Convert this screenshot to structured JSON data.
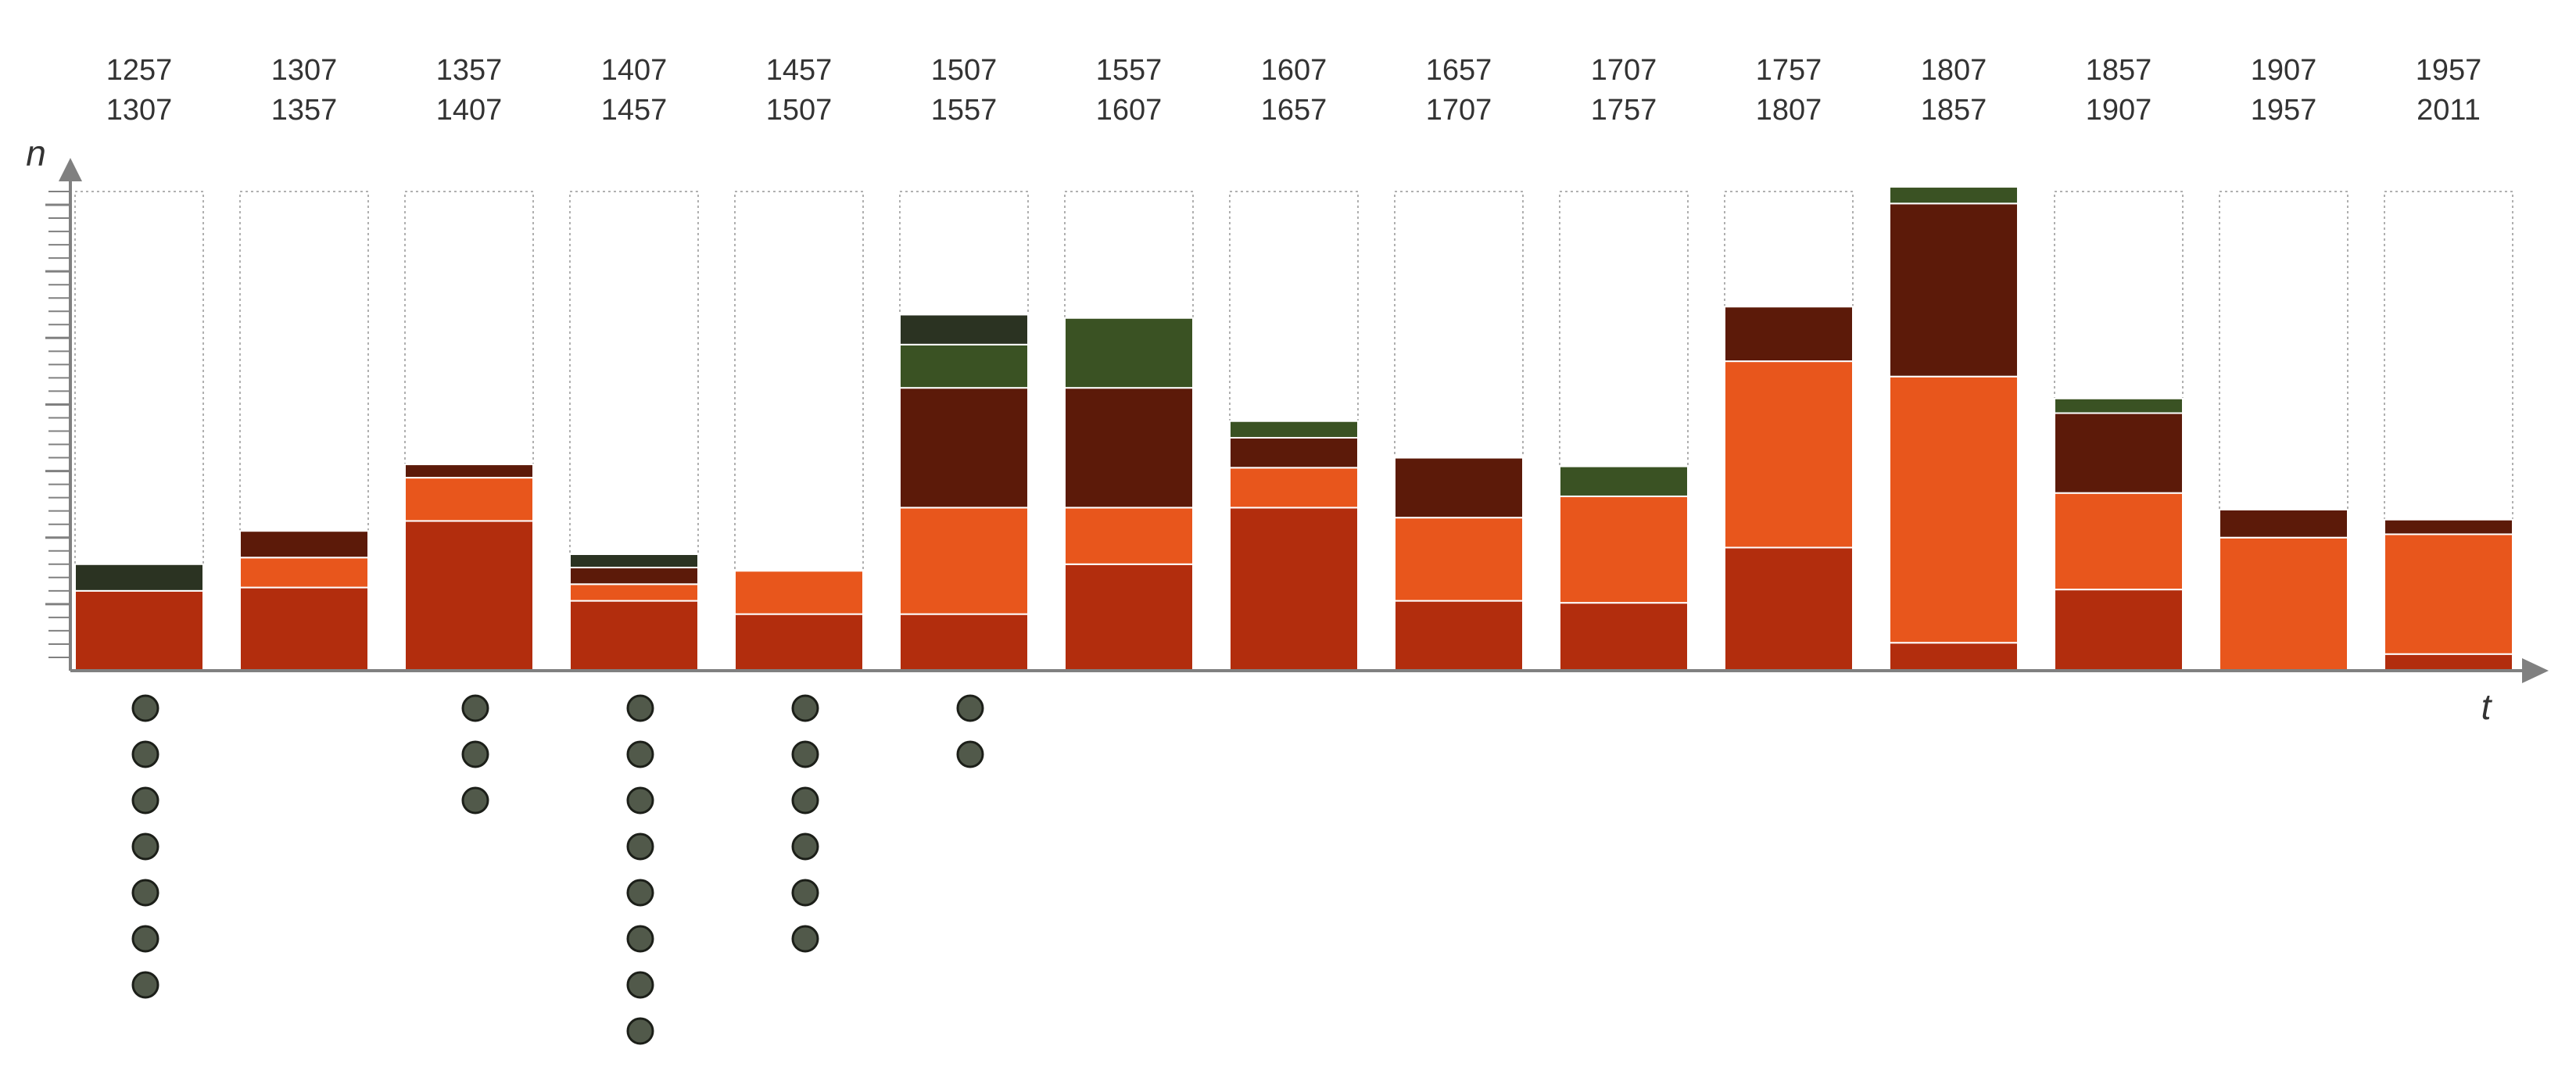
{
  "chart_data": {
    "type": "bar",
    "stacked": true,
    "xlabel": "t",
    "ylabel": "n",
    "ylim": [
      0,
      7.2
    ],
    "grid": false,
    "legend": "none",
    "colors": {
      "s1": "#b22d0d",
      "s2": "#e8561c",
      "s3": "#5c1a09",
      "s4": "#3a5223",
      "s5": "#2b3322",
      "frame": "#b0b0b0",
      "axis": "#808080",
      "dot": "#51594a",
      "dot_outline": "#1c1f19",
      "text": "#333333"
    },
    "categories": [
      {
        "start": "1257",
        "end": "1307"
      },
      {
        "start": "1307",
        "end": "1357"
      },
      {
        "start": "1357",
        "end": "1407"
      },
      {
        "start": "1407",
        "end": "1457"
      },
      {
        "start": "1457",
        "end": "1507"
      },
      {
        "start": "1507",
        "end": "1557"
      },
      {
        "start": "1557",
        "end": "1607"
      },
      {
        "start": "1607",
        "end": "1657"
      },
      {
        "start": "1657",
        "end": "1707"
      },
      {
        "start": "1707",
        "end": "1757"
      },
      {
        "start": "1757",
        "end": "1807"
      },
      {
        "start": "1807",
        "end": "1857"
      },
      {
        "start": "1857",
        "end": "1907"
      },
      {
        "start": "1907",
        "end": "1957"
      },
      {
        "start": "1957",
        "end": "2011"
      }
    ],
    "series": [
      {
        "key": "s1",
        "values": [
          1.2,
          1.25,
          2.25,
          1.05,
          0.85,
          0.85,
          1.6,
          2.45,
          1.05,
          1.02,
          1.85,
          0.42,
          1.22,
          0.0,
          0.25
        ]
      },
      {
        "key": "s2",
        "values": [
          0.0,
          0.45,
          0.65,
          0.25,
          0.65,
          1.6,
          0.85,
          0.6,
          1.25,
          1.6,
          2.8,
          4.0,
          1.45,
          2.0,
          1.8
        ]
      },
      {
        "key": "s3",
        "values": [
          0.0,
          0.4,
          0.2,
          0.25,
          0.0,
          1.8,
          1.8,
          0.45,
          0.9,
          0.0,
          0.82,
          2.6,
          1.2,
          0.42,
          0.22
        ]
      },
      {
        "key": "s4",
        "values": [
          0.0,
          0.0,
          0.0,
          0.0,
          0.0,
          0.65,
          1.05,
          0.25,
          0.0,
          0.45,
          0.0,
          0.25,
          0.22,
          0.0,
          0.0
        ]
      },
      {
        "key": "s5",
        "values": [
          0.4,
          0.0,
          0.0,
          0.2,
          0.0,
          0.45,
          0.0,
          0.0,
          0.0,
          0.0,
          0.0,
          0.0,
          0.0,
          0.0,
          0.0
        ]
      }
    ],
    "dots": [
      7,
      0,
      3,
      8,
      6,
      2,
      0,
      0,
      0,
      0,
      0,
      0,
      0,
      0,
      0
    ],
    "frame_max": 7.2
  }
}
